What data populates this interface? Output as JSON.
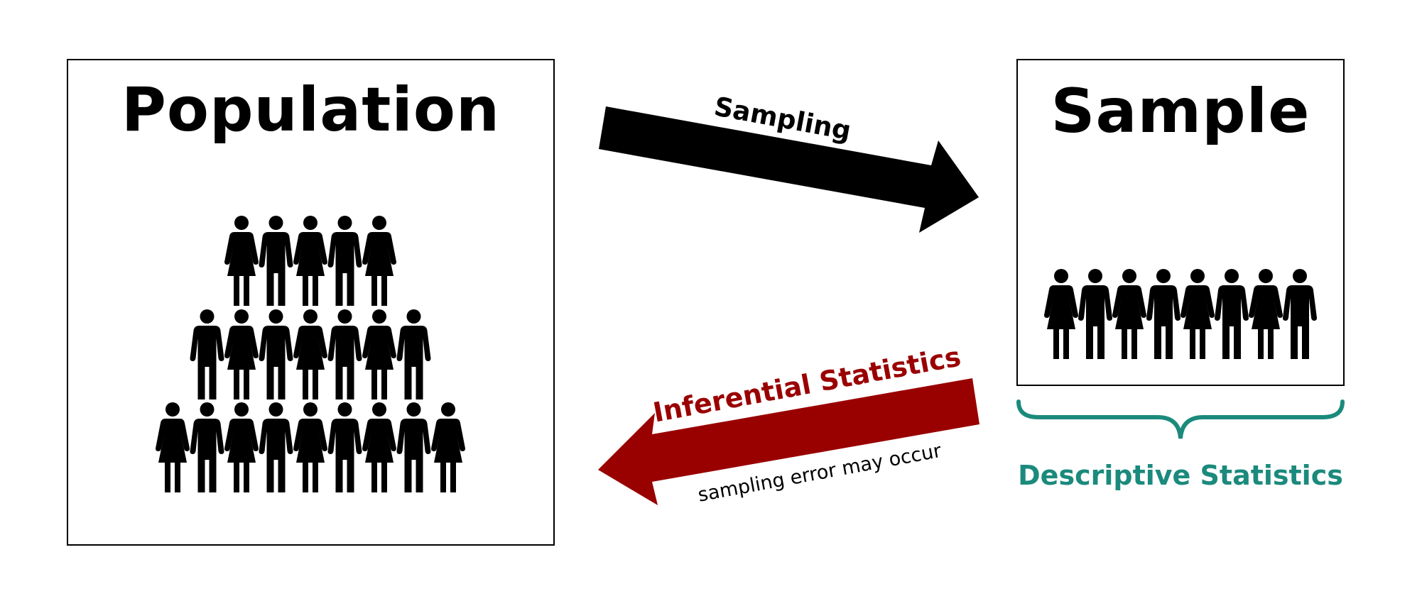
{
  "population": {
    "title": "Population",
    "rows": [
      [
        "female",
        "male",
        "female",
        "male",
        "female"
      ],
      [
        "male",
        "female",
        "male",
        "female",
        "male",
        "female",
        "male"
      ],
      [
        "female",
        "male",
        "female",
        "male",
        "female",
        "male",
        "female",
        "male",
        "female"
      ]
    ]
  },
  "sample": {
    "title": "Sample",
    "people": [
      "female",
      "male",
      "female",
      "male",
      "female",
      "male",
      "female",
      "male"
    ]
  },
  "arrows": {
    "sampling": {
      "label": "Sampling",
      "color": "#000000"
    },
    "inferential": {
      "label": "Inferential Statistics",
      "note": "sampling error may occur",
      "color": "#990000"
    }
  },
  "descriptive": {
    "label": "Descriptive Statistics",
    "color": "#1b8a7c"
  }
}
